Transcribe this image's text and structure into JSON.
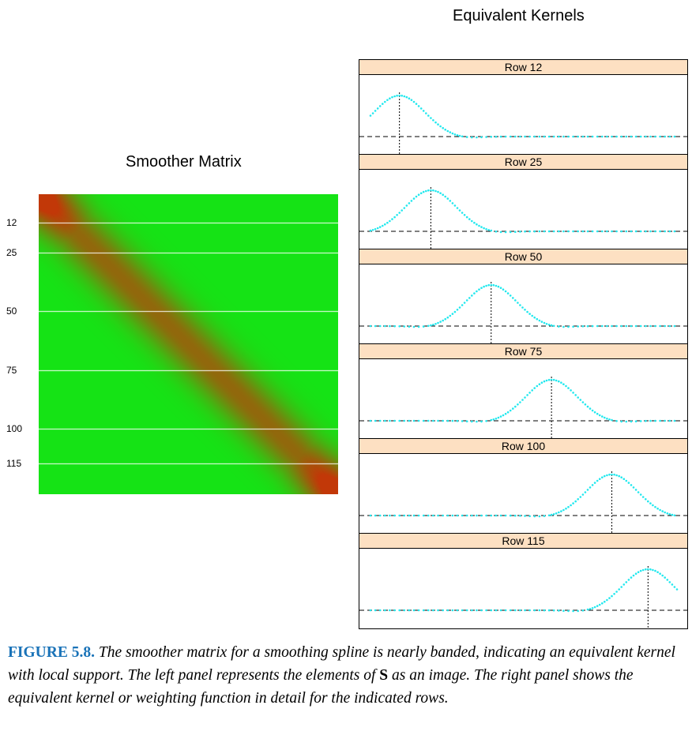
{
  "left_title": "Smoother Matrix",
  "right_title": "Equivalent Kernels",
  "matrix_row_labels": [
    "12",
    "25",
    "50",
    "75",
    "100",
    "115"
  ],
  "matrix_rows": [
    12,
    25,
    50,
    75,
    100,
    115
  ],
  "matrix_n": 128,
  "colors": {
    "matrix_low": "#15e315",
    "matrix_high": "#c23808",
    "kernel_curve": "#22e8ee",
    "strip_fill": "#fde0c2",
    "caption_label": "#1a73b8"
  },
  "panels": [
    {
      "label": "Row 12",
      "row": 12
    },
    {
      "label": "Row 25",
      "row": 25
    },
    {
      "label": "Row 50",
      "row": 50
    },
    {
      "label": "Row 75",
      "row": 75
    },
    {
      "label": "Row 100",
      "row": 100
    },
    {
      "label": "Row 115",
      "row": 115
    }
  ],
  "caption": {
    "label": "FIGURE 5.8.",
    "text_1": "The smoother matrix for a smoothing spline is nearly banded, indicating an equivalent kernel with local support. The left panel represents the elements of",
    "bold_symbol": "S",
    "text_2": "as an image. The right panel shows the equivalent kernel or weighting function in detail for the indicated rows."
  }
}
